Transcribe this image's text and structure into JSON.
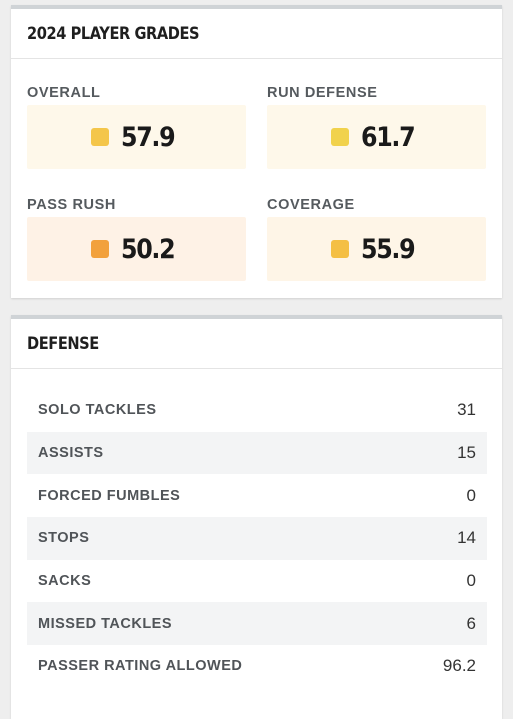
{
  "grades_card": {
    "title": "2024 PLAYER GRADES",
    "grades": [
      {
        "label": "OVERALL",
        "value": "57.9",
        "icon": "grade-square-icon",
        "color": "#f4c64a",
        "bg": "#fef8ea"
      },
      {
        "label": "RUN DEFENSE",
        "value": "61.7",
        "icon": "grade-square-icon",
        "color": "#f1d24c",
        "bg": "#fef8ea"
      },
      {
        "label": "PASS RUSH",
        "value": "50.2",
        "icon": "grade-square-icon",
        "color": "#f2a13c",
        "bg": "#fef2e6"
      },
      {
        "label": "COVERAGE",
        "value": "55.9",
        "icon": "grade-square-icon",
        "color": "#f4bf44",
        "bg": "#fef5e7"
      }
    ]
  },
  "defense_card": {
    "title": "DEFENSE",
    "rows": [
      {
        "label": "SOLO TACKLES",
        "value": "31"
      },
      {
        "label": "ASSISTS",
        "value": "15"
      },
      {
        "label": "FORCED FUMBLES",
        "value": "0"
      },
      {
        "label": "STOPS",
        "value": "14"
      },
      {
        "label": "SACKS",
        "value": "0"
      },
      {
        "label": "MISSED TACKLES",
        "value": "6"
      },
      {
        "label": "PASSER RATING ALLOWED",
        "value": "96.2"
      }
    ]
  }
}
